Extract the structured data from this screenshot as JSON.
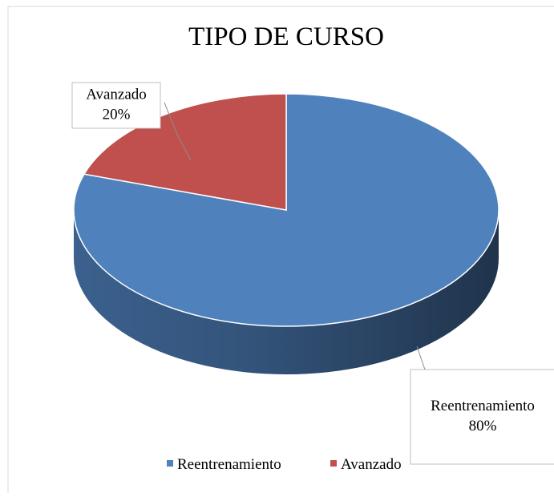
{
  "chart_data": {
    "type": "pie3d",
    "title": "TIPO DE CURSO",
    "categories": [
      "Reentrenamiento",
      "Avanzado"
    ],
    "values": [
      80,
      20
    ],
    "value_labels": [
      "80%",
      "20%"
    ],
    "colors": [
      "#4f81bd",
      "#c0504d"
    ],
    "legend": "bottom"
  }
}
